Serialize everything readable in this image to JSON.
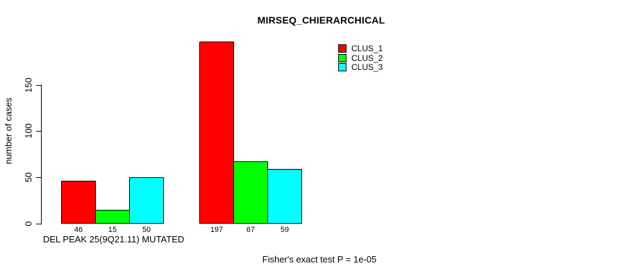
{
  "chart_data": {
    "type": "bar",
    "title": "MIRSEQ_CHIERARCHICAL",
    "ylabel": "number of cases",
    "xlabel": "",
    "group_label": "DEL PEAK 25(9Q21.11) MUTATED",
    "categories": [
      "DEL PEAK 25(9Q21.11) MUTATED",
      ""
    ],
    "series": [
      {
        "name": "CLUS_1",
        "color": "#ff0000",
        "values": [
          46,
          197
        ]
      },
      {
        "name": "CLUS_2",
        "color": "#00ff00",
        "values": [
          15,
          67
        ]
      },
      {
        "name": "CLUS_3",
        "color": "#00ffff",
        "values": [
          50,
          59
        ]
      }
    ],
    "yticks": [
      "0",
      "50",
      "100",
      "150"
    ],
    "ytick_values": [
      0,
      50,
      100,
      150
    ],
    "ylim": [
      0,
      150
    ],
    "bar_value_labels_shown": true,
    "grid": false,
    "legend_position": "top-right",
    "annotation": "Fisher's exact test P = 1e-05",
    "background_color": "#ffffff",
    "text_color": "#000000"
  }
}
